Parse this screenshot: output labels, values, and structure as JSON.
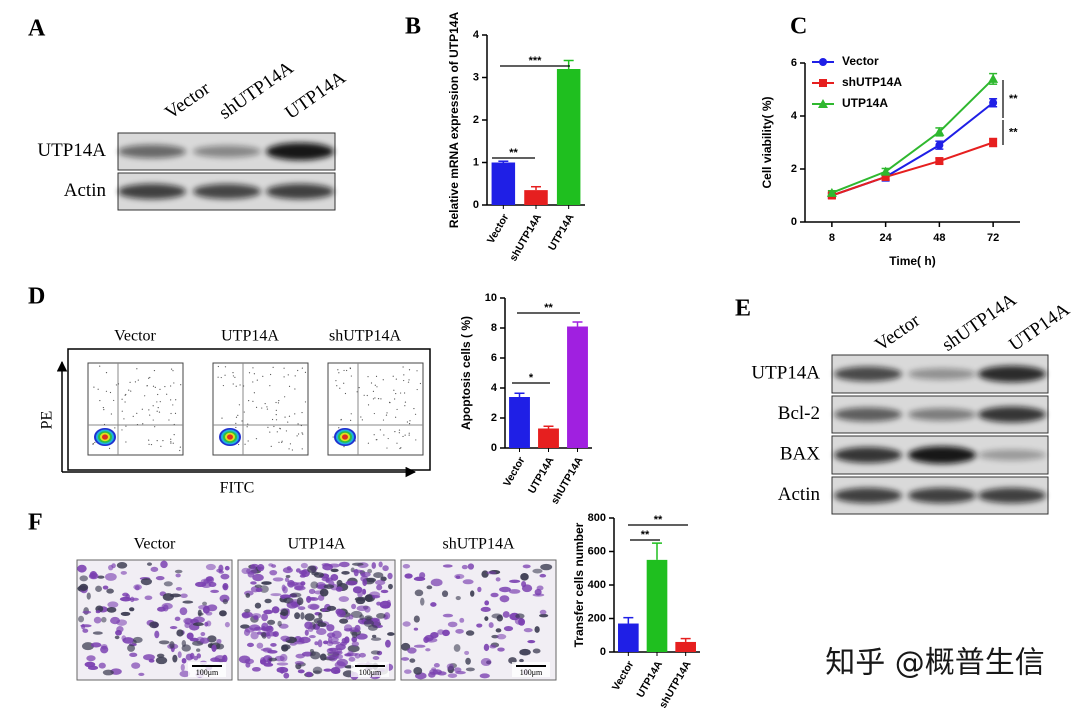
{
  "panel_labels": [
    "A",
    "B",
    "C",
    "D",
    "E",
    "F"
  ],
  "panel_a": {
    "columns": [
      "Vector",
      "shUTP14A",
      "UTP14A"
    ],
    "rows": [
      "UTP14A",
      "Actin"
    ]
  },
  "panel_d_flow": {
    "titles": [
      "Vector",
      "UTP14A",
      "shUTP14A"
    ],
    "y_label": "PE",
    "x_label": "FITC"
  },
  "panel_e": {
    "columns": [
      "Vector",
      "shUTP14A",
      "UTP14A"
    ],
    "rows": [
      "UTP14A",
      "Bcl-2",
      "BAX",
      "Actin"
    ]
  },
  "panel_f_images": {
    "titles": [
      "Vector",
      "UTP14A",
      "shUTP14A"
    ],
    "scale_bar": "100μm"
  },
  "chart_data": [
    {
      "type": "bar",
      "y_label": "Relative  mRNA expression of UTP14A",
      "categories": [
        "Vector",
        "shUTP14A",
        "UTP14A"
      ],
      "values": [
        1.0,
        0.35,
        3.2
      ],
      "errors": [
        0.03,
        0.08,
        0.2
      ],
      "colors": [
        "#1f1fe6",
        "#e61f1f",
        "#1fbf1f"
      ],
      "ylim": [
        0,
        4
      ],
      "yticks": [
        0,
        1,
        2,
        3,
        4
      ],
      "annotations": [
        "**",
        "***"
      ]
    },
    {
      "type": "line",
      "x_label": "Time( h)",
      "y_label": "Cell viability( %)",
      "categories": [
        "8",
        "24",
        "48",
        "72"
      ],
      "ylim": [
        0,
        6
      ],
      "yticks": [
        0,
        2,
        4,
        6
      ],
      "series": [
        {
          "name": "Vector",
          "color": "#1f1fe6",
          "values": [
            1.0,
            1.7,
            2.9,
            4.5
          ],
          "errors": [
            0.1,
            0.15,
            0.15,
            0.15
          ]
        },
        {
          "name": "shUTP14A",
          "color": "#e61f1f",
          "values": [
            1.0,
            1.7,
            2.3,
            3.0
          ],
          "errors": [
            0.08,
            0.1,
            0.1,
            0.15
          ]
        },
        {
          "name": "UTP14A",
          "color": "#2fb82f",
          "values": [
            1.1,
            1.9,
            3.4,
            5.4
          ],
          "errors": [
            0.08,
            0.12,
            0.15,
            0.2
          ]
        }
      ],
      "annotations": [
        "**",
        "**"
      ]
    },
    {
      "type": "bar",
      "y_label": "Apoptosis cells ( %)",
      "categories": [
        "Vector",
        "UTP14A",
        "shUTP14A"
      ],
      "values": [
        3.4,
        1.3,
        8.1
      ],
      "errors": [
        0.25,
        0.15,
        0.3
      ],
      "colors": [
        "#1f1fe6",
        "#e61f1f",
        "#a020e0"
      ],
      "ylim": [
        0,
        10
      ],
      "yticks": [
        0,
        2,
        4,
        6,
        8,
        10
      ],
      "annotations": [
        "*",
        "**"
      ]
    },
    {
      "type": "bar",
      "y_label": "Transfer cells number",
      "categories": [
        "Vector",
        "UTP14A",
        "shUTP14A"
      ],
      "values": [
        170,
        550,
        60
      ],
      "errors": [
        35,
        100,
        20
      ],
      "colors": [
        "#1f1fe6",
        "#1fbf1f",
        "#e61f1f"
      ],
      "ylim": [
        0,
        800
      ],
      "yticks": [
        0,
        200,
        400,
        600,
        800
      ],
      "annotations": [
        "**",
        "**"
      ]
    }
  ],
  "watermark": "知乎 @概普生信"
}
